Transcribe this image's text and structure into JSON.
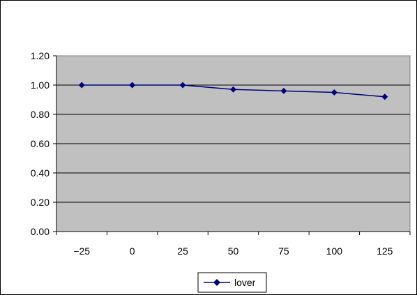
{
  "chart_data": {
    "type": "line",
    "title": "",
    "xlabel": "",
    "ylabel": "",
    "categories": [
      "-25",
      "0",
      "25",
      "50",
      "75",
      "100",
      "125"
    ],
    "x": [
      -25,
      0,
      25,
      50,
      75,
      100,
      125
    ],
    "ylim": [
      0,
      1.2
    ],
    "yticks": [
      "0.00",
      "0.20",
      "0.40",
      "0.60",
      "0.80",
      "1.00",
      "1.20"
    ],
    "grid": "horizontal",
    "plot_background": "#C0C0C0",
    "legend_position": "bottom",
    "series": [
      {
        "name": "lover",
        "color": "#000080",
        "marker": "diamond",
        "values": [
          1.0,
          1.0,
          1.0,
          0.97,
          0.96,
          0.95,
          0.92
        ]
      }
    ]
  }
}
